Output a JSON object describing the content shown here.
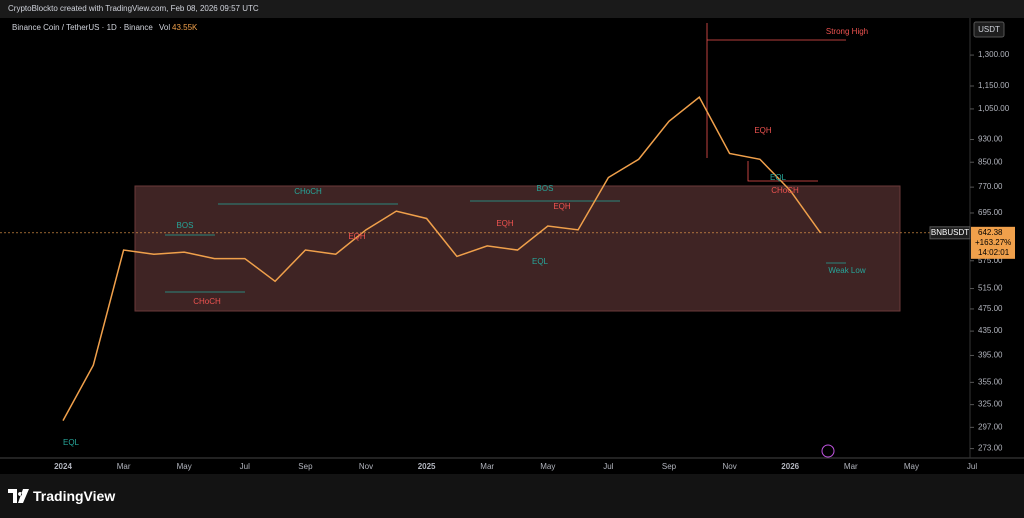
{
  "header": {
    "credit": "CryptoBlockto created with TradingView.com, Feb 08, 2026 09:57 UTC",
    "brand": "TradingView"
  },
  "chart_data": {
    "type": "line",
    "title": "Binance Coin / TetherUS · 1D · Binance",
    "volume_label": "Vol",
    "volume_value": "43.55K",
    "currency": "USDT",
    "symbol": "BNBUSDT",
    "last_price": "642.38",
    "change": "+163.27%",
    "countdown": "14:02:01",
    "categories": [
      "2024",
      null,
      "Mar",
      null,
      "May",
      null,
      "Jul",
      null,
      "Sep",
      null,
      "Nov",
      null,
      "2025",
      null,
      "Mar",
      null,
      "May",
      null,
      "Jul",
      null,
      "Sep",
      null,
      "Nov",
      null,
      "2026",
      null,
      "Mar",
      null,
      "May",
      null,
      "Jul"
    ],
    "series": [
      {
        "name": "BNBUSDT",
        "color": "#f0a04b",
        "values": [
          305,
          380,
          600,
          590,
          595,
          580,
          580,
          530,
          600,
          590,
          650,
          700,
          680,
          585,
          610,
          600,
          660,
          650,
          800,
          860,
          1000,
          1100,
          880,
          860,
          760,
          642.38,
          null,
          null,
          null,
          null,
          null
        ]
      }
    ],
    "log_scale": true,
    "grid": false,
    "ylim": [
      263,
      1494
    ],
    "yticks": [
      {
        "value": 1300,
        "label": "1,300.00"
      },
      {
        "value": 1150,
        "label": "1,150.00"
      },
      {
        "value": 1050,
        "label": "1,050.00"
      },
      {
        "value": 930,
        "label": "930.00"
      },
      {
        "value": 850,
        "label": "850.00"
      },
      {
        "value": 770,
        "label": "770.00"
      },
      {
        "value": 695,
        "label": "695.00"
      },
      {
        "value": 575,
        "label": "575.00"
      },
      {
        "value": 515,
        "label": "515.00"
      },
      {
        "value": 475,
        "label": "475.00"
      },
      {
        "value": 435,
        "label": "435.00"
      },
      {
        "value": 395,
        "label": "395.00"
      },
      {
        "value": 355,
        "label": "355.00"
      },
      {
        "value": 325,
        "label": "325.00"
      },
      {
        "value": 297,
        "label": "297.00"
      },
      {
        "value": 273,
        "label": "273.00"
      }
    ],
    "annotations": [
      {
        "text": "BOS",
        "color": "#26a69a"
      },
      {
        "text": "CHoCH",
        "color": "#26a69a"
      },
      {
        "text": "CHoCH",
        "color": "#ef5350"
      },
      {
        "text": "BOS",
        "color": "#26a69a"
      },
      {
        "text": "EQH",
        "color": "#ef5350"
      },
      {
        "text": "EQH",
        "color": "#ef5350"
      },
      {
        "text": "EQH",
        "color": "#ef5350"
      },
      {
        "text": "EQH",
        "color": "#ef5350"
      },
      {
        "text": "CHoCH",
        "color": "#ef5350"
      },
      {
        "text": "EQL",
        "color": "#26a69a"
      },
      {
        "text": "EQL",
        "color": "#26a69a"
      },
      {
        "text": "EQL",
        "color": "#26a69a"
      },
      {
        "text": "Strong High",
        "color": "#ef5350"
      },
      {
        "text": "Weak Low",
        "color": "#26a69a"
      }
    ]
  }
}
